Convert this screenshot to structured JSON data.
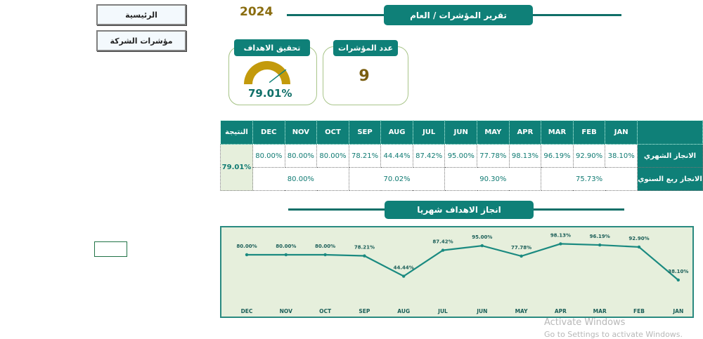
{
  "nav": {
    "home": "الرئيسية",
    "company_kpis": "مؤشرات الشركة"
  },
  "header": {
    "year": "2024",
    "title": "تقرير المؤشرات / العام"
  },
  "cards": {
    "achievement": {
      "title": "تحقيق الاهداف",
      "value": "79.01%",
      "fraction": 0.7901
    },
    "count": {
      "title": "عدد المؤشرات",
      "value": "9"
    }
  },
  "table": {
    "result_header": "النتيجة",
    "months": [
      "DEC",
      "NOV",
      "OCT",
      "SEP",
      "AUG",
      "JUL",
      "JUN",
      "MAY",
      "APR",
      "MAR",
      "FEB",
      "JAN"
    ],
    "monthly_label": "الانجاز الشهري",
    "monthly": [
      "80.00%",
      "80.00%",
      "80.00%",
      "78.21%",
      "44.44%",
      "87.42%",
      "95.00%",
      "77.78%",
      "98.13%",
      "96.19%",
      "92.90%",
      "38.10%"
    ],
    "quarterly_label": "الانجاز ربع السنوي",
    "quarterly": [
      "80.00%",
      "70.02%",
      "90.30%",
      "75.73%"
    ],
    "result": "79.01%"
  },
  "chart_data": {
    "type": "line",
    "title": "انجاز الاهداف شهريا",
    "categories": [
      "DEC",
      "NOV",
      "OCT",
      "SEP",
      "AUG",
      "JUL",
      "JUN",
      "MAY",
      "APR",
      "MAR",
      "FEB",
      "JAN"
    ],
    "values": [
      80.0,
      80.0,
      80.0,
      78.21,
      44.44,
      87.42,
      95.0,
      77.78,
      98.13,
      96.19,
      92.9,
      38.1
    ],
    "labels": [
      "80.00%",
      "80.00%",
      "80.00%",
      "78.21%",
      "44.44%",
      "87.42%",
      "95.00%",
      "77.78%",
      "98.13%",
      "96.19%",
      "92.90%",
      "38.10%"
    ],
    "color": "#1a8a80",
    "background": "#e6efdc"
  },
  "watermark": {
    "line1": "Activate Windows",
    "line2": "Go to Settings to activate Windows."
  }
}
